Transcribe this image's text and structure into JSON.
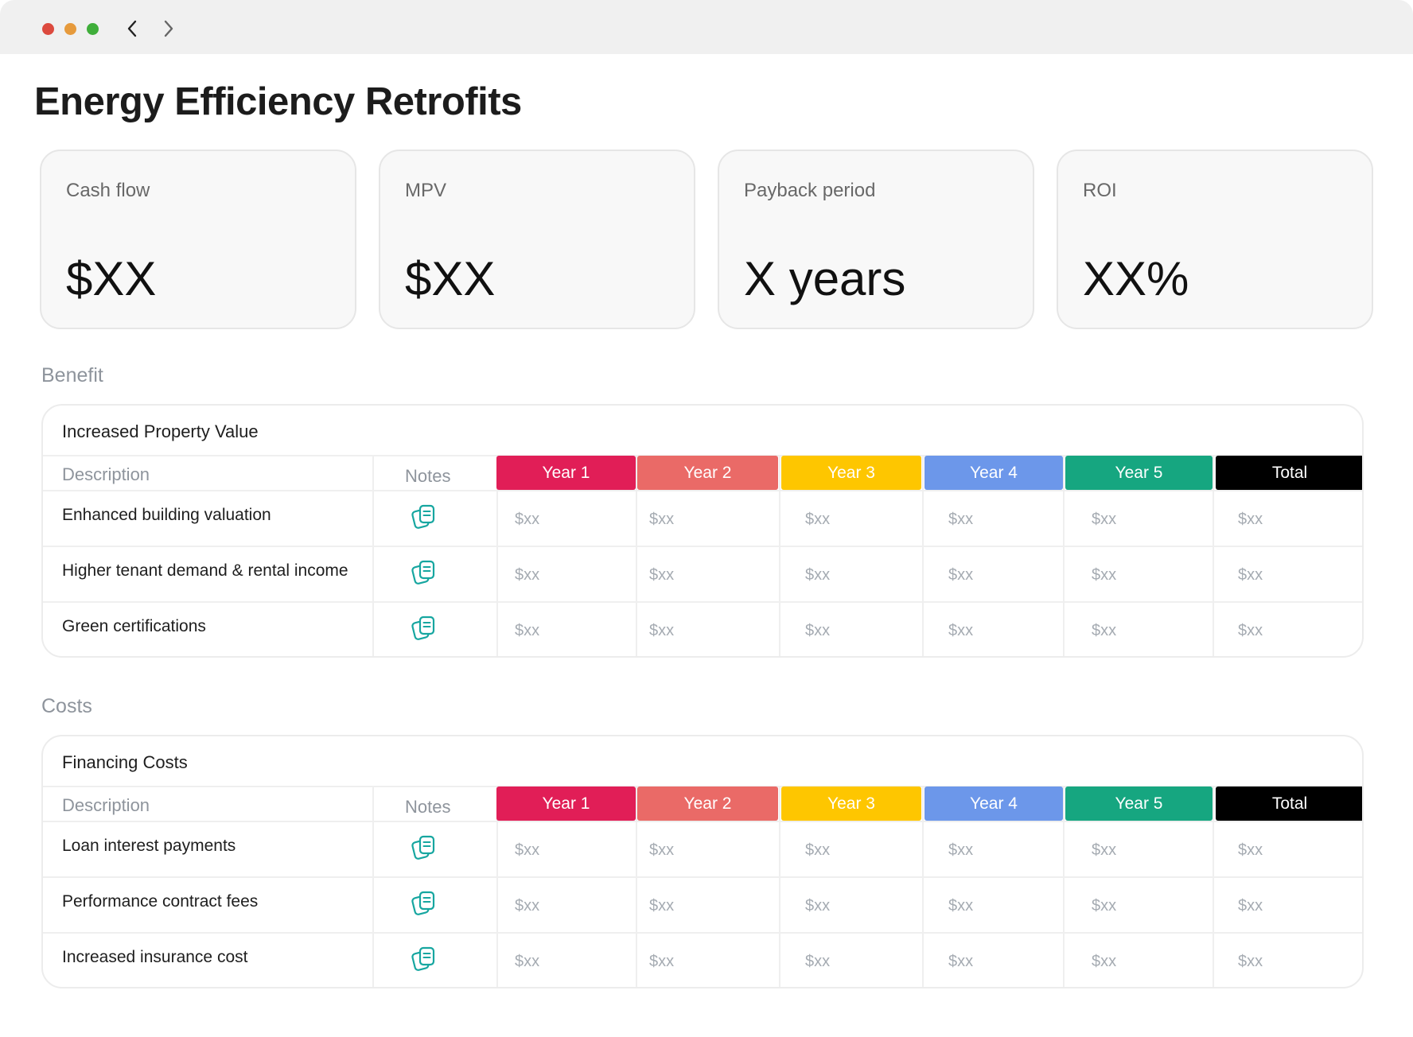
{
  "page": {
    "title": "Energy Efficiency Retrofits"
  },
  "kpis": [
    {
      "label": "Cash flow",
      "value": "$XX"
    },
    {
      "label": "MPV",
      "value": "$XX"
    },
    {
      "label": "Payback period",
      "value": "X years"
    },
    {
      "label": "ROI",
      "value": "XX%"
    }
  ],
  "year_colors": [
    "#e11e57",
    "#ea6a67",
    "#fec600",
    "#6c97ea",
    "#16a680",
    "#000000"
  ],
  "sections": [
    {
      "label": "Benefit",
      "table": {
        "name": "Increased Property Value",
        "columns": {
          "description": "Description",
          "notes": "Notes",
          "years": [
            "Year 1",
            "Year 2",
            "Year 3",
            "Year 4",
            "Year 5",
            "Total"
          ]
        },
        "rows": [
          {
            "description": "Enhanced building valuation",
            "values": [
              "$xx",
              "$xx",
              "$xx",
              "$xx",
              "$xx",
              "$xx"
            ]
          },
          {
            "description": "Higher tenant demand & rental income",
            "values": [
              "$xx",
              "$xx",
              "$xx",
              "$xx",
              "$xx",
              "$xx"
            ]
          },
          {
            "description": "Green certifications",
            "values": [
              "$xx",
              "$xx",
              "$xx",
              "$xx",
              "$xx",
              "$xx"
            ]
          }
        ]
      }
    },
    {
      "label": "Costs",
      "table": {
        "name": "Financing Costs",
        "columns": {
          "description": "Description",
          "notes": "Notes",
          "years": [
            "Year 1",
            "Year 2",
            "Year 3",
            "Year 4",
            "Year 5",
            "Total"
          ]
        },
        "rows": [
          {
            "description": "Loan interest payments",
            "values": [
              "$xx",
              "$xx",
              "$xx",
              "$xx",
              "$xx",
              "$xx"
            ]
          },
          {
            "description": "Performance contract fees",
            "values": [
              "$xx",
              "$xx",
              "$xx",
              "$xx",
              "$xx",
              "$xx"
            ]
          },
          {
            "description": "Increased insurance cost",
            "values": [
              "$xx",
              "$xx",
              "$xx",
              "$xx",
              "$xx",
              "$xx"
            ]
          }
        ]
      }
    }
  ],
  "icons": {
    "back": "chevron-left-icon",
    "forward": "chevron-right-icon",
    "note": "notes-icon"
  }
}
